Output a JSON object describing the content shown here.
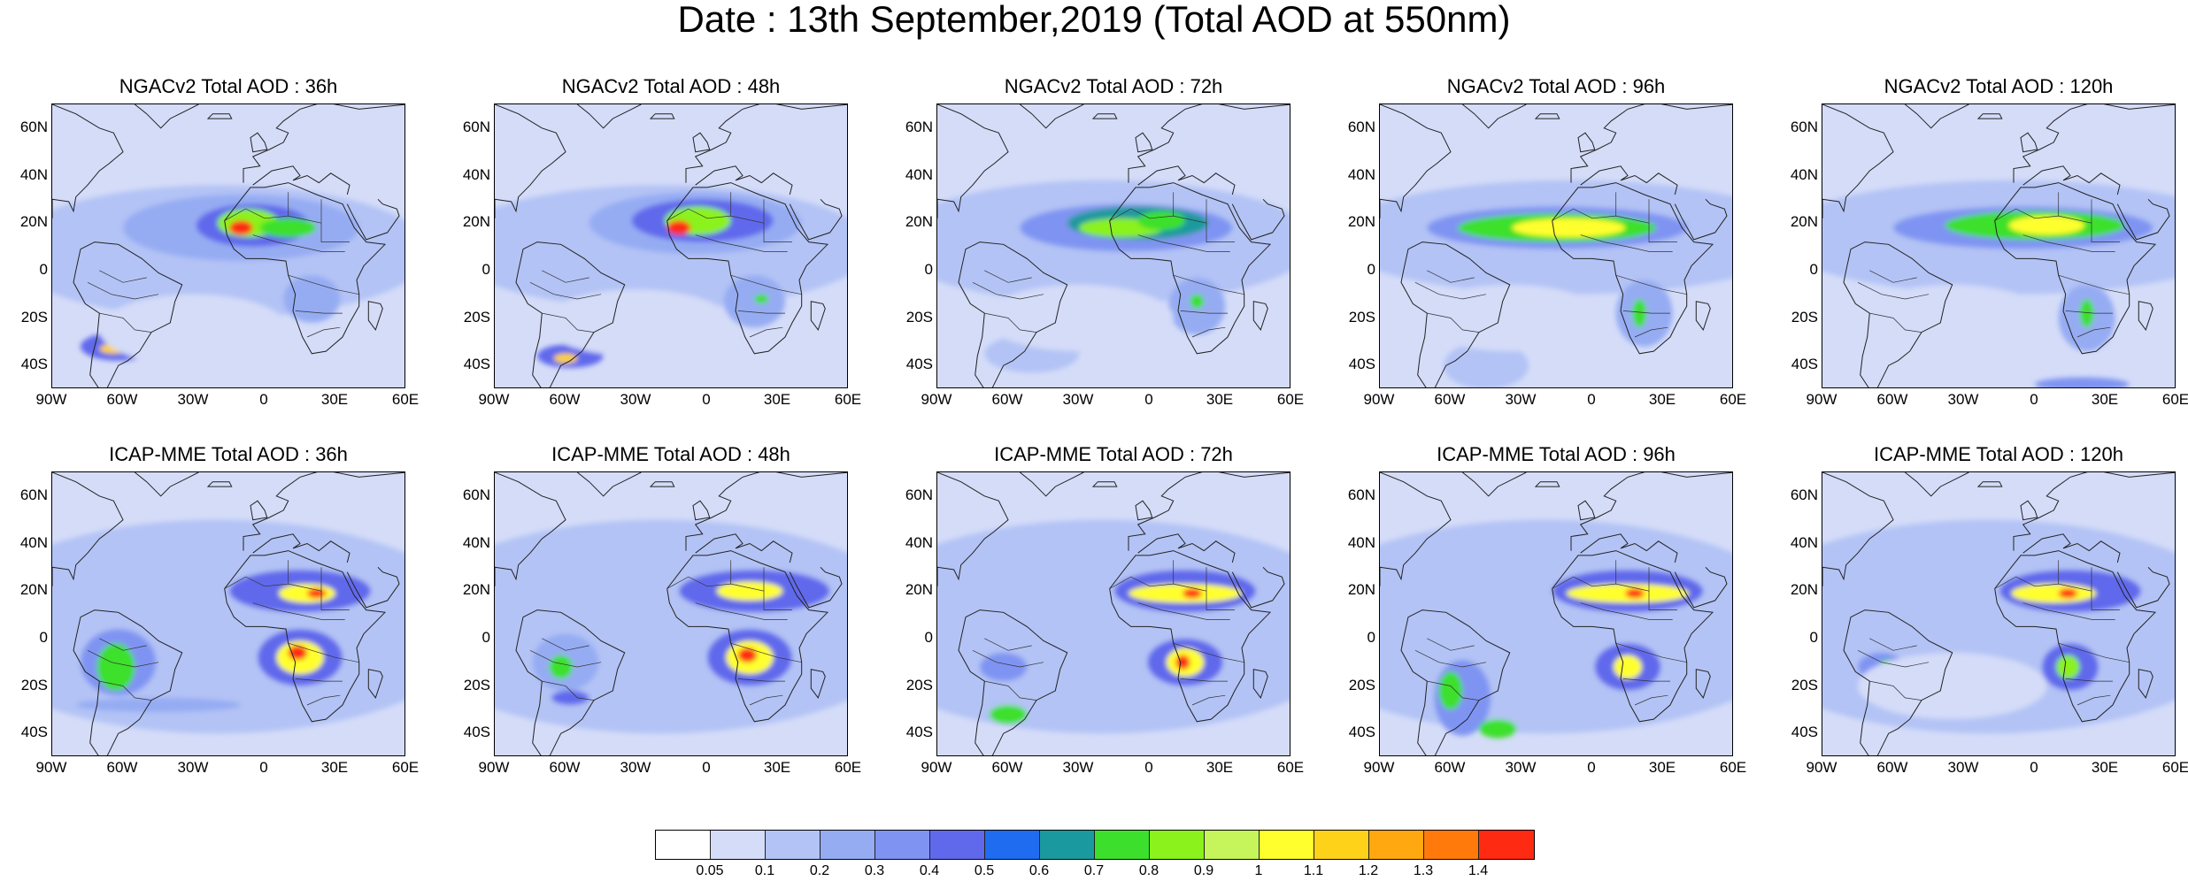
{
  "title": "Date : 13th September,2019 (Total AOD at 550nm)",
  "lat_ticks": [
    "60N",
    "40N",
    "20N",
    "0",
    "20S",
    "40S"
  ],
  "lon_ticks": [
    "90W",
    "60W",
    "30W",
    "0",
    "30E",
    "60E"
  ],
  "panels": [
    {
      "title": "NGACv2 Total AOD : 36h"
    },
    {
      "title": "NGACv2 Total AOD : 48h"
    },
    {
      "title": "NGACv2 Total AOD : 72h"
    },
    {
      "title": "NGACv2 Total AOD : 96h"
    },
    {
      "title": "NGACv2 Total AOD : 120h"
    },
    {
      "title": "ICAP-MME Total AOD : 36h"
    },
    {
      "title": "ICAP-MME Total AOD : 48h"
    },
    {
      "title": "ICAP-MME Total AOD : 72h"
    },
    {
      "title": "ICAP-MME Total AOD : 96h"
    },
    {
      "title": "ICAP-MME Total AOD : 120h"
    }
  ],
  "colorbar": {
    "colors": [
      "#ffffff",
      "#d4dcf8",
      "#b3c3f5",
      "#95acf3",
      "#7f94f2",
      "#6069ec",
      "#1f6cf0",
      "#1a9a9e",
      "#3ce02c",
      "#8bf21c",
      "#c5f55a",
      "#ffff2e",
      "#ffd21a",
      "#ffa810",
      "#ff7a0a",
      "#ff2a12"
    ],
    "labels": [
      "0.05",
      "0.1",
      "0.2",
      "0.3",
      "0.4",
      "0.5",
      "0.6",
      "0.7",
      "0.8",
      "0.9",
      "1",
      "1.1",
      "1.2",
      "1.3",
      "1.4"
    ]
  }
}
